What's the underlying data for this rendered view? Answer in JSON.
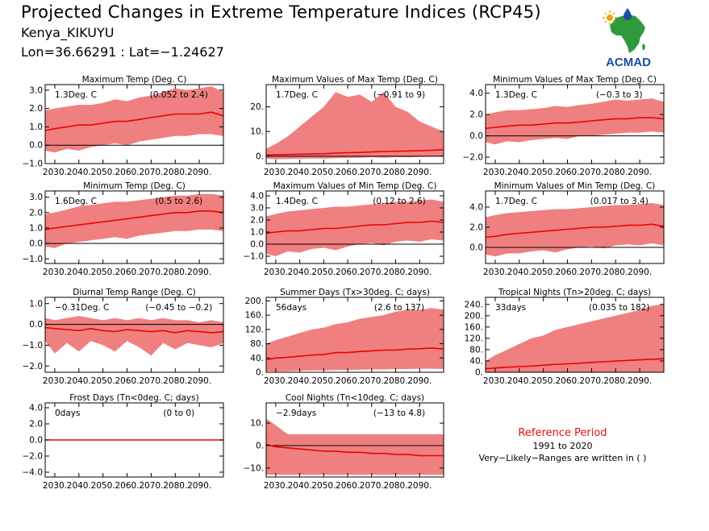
{
  "header": {
    "title": "Projected Changes in Extreme Temperature Indices (RCP45)",
    "location": "Kenya_KIKUYU",
    "coords": "Lon=36.66291 : Lat=−1.24627"
  },
  "logo": {
    "text": "ACMAD"
  },
  "reference": {
    "title": "Reference Period",
    "years": "1991 to 2020",
    "note": "Very−Likely−Ranges are written in ( )"
  },
  "colors": {
    "band": "#f08080",
    "line": "#ee0000",
    "zero": "#000000",
    "logo_blue": "#1b4f9c",
    "logo_green": "#2e9a3a"
  },
  "chart_data": [
    {
      "type": "area",
      "title": "Maximum Temp (Deg. C)",
      "value_label": "1.3Deg. C",
      "range_label": "(0.052 to 2.4)",
      "x": [
        2026,
        2030,
        2035,
        2040,
        2045,
        2050,
        2055,
        2060,
        2065,
        2070,
        2075,
        2080,
        2085,
        2090,
        2095,
        2100
      ],
      "median": [
        0.8,
        0.9,
        1.0,
        1.1,
        1.1,
        1.2,
        1.3,
        1.3,
        1.4,
        1.5,
        1.6,
        1.7,
        1.7,
        1.7,
        1.8,
        1.6
      ],
      "low": [
        -0.3,
        -0.4,
        -0.2,
        -0.3,
        -0.1,
        0.0,
        0.1,
        0.0,
        0.2,
        0.3,
        0.4,
        0.5,
        0.5,
        0.6,
        0.6,
        0.5
      ],
      "high": [
        1.9,
        2.0,
        2.1,
        2.2,
        2.2,
        2.3,
        2.5,
        2.4,
        2.6,
        2.7,
        2.9,
        3.1,
        3.0,
        3.1,
        3.2,
        2.9
      ],
      "ylim": [
        -1.0,
        3.3
      ],
      "yticks": [
        -1.0,
        0.0,
        1.0,
        2.0,
        3.0
      ],
      "ytick_labels": [
        "−1.0",
        "0.0",
        "1.0",
        "2.0",
        "3.0"
      ],
      "xlim": [
        2026,
        2100
      ],
      "xticks": [
        2030,
        2040,
        2050,
        2060,
        2070,
        2080,
        2090
      ],
      "xtick_labels": [
        "2030.",
        "2040.",
        "2050.",
        "2060.",
        "2070.",
        "2080.",
        "2090."
      ]
    },
    {
      "type": "area",
      "title": "Maximum Values of Max Temp (Deg. C)",
      "value_label": "1.7Deg. C",
      "range_label": "(−0.91 to 9)",
      "x": [
        2026,
        2030,
        2035,
        2040,
        2045,
        2050,
        2055,
        2060,
        2065,
        2070,
        2075,
        2080,
        2085,
        2090,
        2095,
        2100
      ],
      "median": [
        0.5,
        0.6,
        0.7,
        0.8,
        0.9,
        1.0,
        1.2,
        1.4,
        1.5,
        1.7,
        1.9,
        2.0,
        2.1,
        2.2,
        2.4,
        2.6
      ],
      "low": [
        -1.0,
        -1.2,
        -1.1,
        -1.0,
        -0.9,
        -1.0,
        -0.8,
        -0.7,
        -0.6,
        -0.5,
        -0.6,
        -0.4,
        -0.5,
        -0.3,
        -0.2,
        0.0
      ],
      "high": [
        3.0,
        5.0,
        8.0,
        12.0,
        16.0,
        20.0,
        26.0,
        24.0,
        25.0,
        22.0,
        26.0,
        20.0,
        18.0,
        14.0,
        12.0,
        10.0
      ],
      "ylim": [
        -3.0,
        29.0
      ],
      "yticks": [
        0,
        10,
        20
      ],
      "ytick_labels": [
        "0.",
        "10.",
        "20."
      ],
      "xlim": [
        2026,
        2100
      ],
      "xticks": [
        2030,
        2040,
        2050,
        2060,
        2070,
        2080,
        2090
      ],
      "xtick_labels": [
        "2030.",
        "2040.",
        "2050.",
        "2060.",
        "2070.",
        "2080.",
        "2090."
      ]
    },
    {
      "type": "area",
      "title": "Minimum Values of Max Temp (Deg. C)",
      "value_label": "1.3Deg. C",
      "range_label": "(−0.3 to 3)",
      "x": [
        2026,
        2030,
        2035,
        2040,
        2045,
        2050,
        2055,
        2060,
        2065,
        2070,
        2075,
        2080,
        2085,
        2090,
        2095,
        2100
      ],
      "median": [
        0.7,
        0.8,
        0.9,
        1.0,
        1.0,
        1.1,
        1.2,
        1.2,
        1.3,
        1.4,
        1.5,
        1.6,
        1.6,
        1.7,
        1.7,
        1.6
      ],
      "low": [
        -0.6,
        -0.8,
        -0.5,
        -0.6,
        -0.4,
        -0.3,
        -0.2,
        -0.3,
        0.0,
        0.0,
        0.1,
        0.2,
        0.3,
        0.3,
        0.4,
        0.3
      ],
      "high": [
        2.0,
        2.2,
        2.4,
        2.4,
        2.5,
        2.6,
        2.8,
        2.7,
        2.9,
        3.0,
        3.2,
        3.4,
        3.3,
        3.4,
        3.5,
        3.2
      ],
      "ylim": [
        -2.6,
        4.8
      ],
      "yticks": [
        -2.0,
        0.0,
        2.0,
        4.0
      ],
      "ytick_labels": [
        "−2.0",
        "0.0",
        "2.0",
        "4.0"
      ],
      "xlim": [
        2026,
        2100
      ],
      "xticks": [
        2030,
        2040,
        2050,
        2060,
        2070,
        2080,
        2090
      ],
      "xtick_labels": [
        "2030.",
        "2040.",
        "2050.",
        "2060.",
        "2070.",
        "2080.",
        "2090."
      ]
    },
    {
      "type": "area",
      "title": "Minimum Temp (Deg. C)",
      "value_label": "1.6Deg. C",
      "range_label": "(0.5 to 2.6)",
      "x": [
        2026,
        2030,
        2035,
        2040,
        2045,
        2050,
        2055,
        2060,
        2065,
        2070,
        2075,
        2080,
        2085,
        2090,
        2095,
        2100
      ],
      "median": [
        0.9,
        1.0,
        1.1,
        1.2,
        1.3,
        1.4,
        1.5,
        1.6,
        1.7,
        1.8,
        1.9,
        2.0,
        2.0,
        2.1,
        2.1,
        2.0
      ],
      "low": [
        -0.2,
        -0.3,
        0.0,
        0.1,
        0.2,
        0.3,
        0.4,
        0.3,
        0.5,
        0.6,
        0.7,
        0.8,
        0.8,
        0.9,
        0.9,
        0.8
      ],
      "high": [
        1.9,
        2.0,
        2.2,
        2.4,
        2.5,
        2.6,
        2.7,
        2.7,
        2.8,
        2.9,
        3.0,
        3.1,
        3.1,
        3.2,
        3.2,
        3.1
      ],
      "ylim": [
        -1.3,
        3.4
      ],
      "yticks": [
        -1.0,
        0.0,
        1.0,
        2.0,
        3.0
      ],
      "ytick_labels": [
        "−1.0",
        "0.0",
        "1.0",
        "2.0",
        "3.0"
      ],
      "xlim": [
        2026,
        2100
      ],
      "xticks": [
        2030,
        2040,
        2050,
        2060,
        2070,
        2080,
        2090
      ],
      "xtick_labels": [
        "2030.",
        "2040.",
        "2050.",
        "2060.",
        "2070.",
        "2080.",
        "2090."
      ]
    },
    {
      "type": "area",
      "title": "Maximum Values of Min Temp (Deg. C)",
      "value_label": "1.4Deg. C",
      "range_label": "(0.12 to 2.6)",
      "x": [
        2026,
        2030,
        2035,
        2040,
        2045,
        2050,
        2055,
        2060,
        2065,
        2070,
        2075,
        2080,
        2085,
        2090,
        2095,
        2100
      ],
      "median": [
        0.9,
        1.0,
        1.1,
        1.1,
        1.2,
        1.3,
        1.3,
        1.4,
        1.5,
        1.6,
        1.6,
        1.7,
        1.8,
        1.8,
        1.9,
        1.8
      ],
      "low": [
        -0.8,
        -1.0,
        -0.6,
        -0.7,
        -0.4,
        -0.3,
        -0.5,
        -0.2,
        0.0,
        0.1,
        -0.1,
        0.2,
        0.3,
        0.2,
        0.4,
        0.3
      ],
      "high": [
        2.3,
        2.5,
        2.7,
        2.8,
        2.9,
        3.0,
        3.1,
        3.1,
        3.2,
        3.3,
        3.4,
        3.5,
        3.5,
        3.6,
        3.7,
        3.5
      ],
      "ylim": [
        -1.6,
        4.4
      ],
      "yticks": [
        -1.0,
        0.0,
        1.0,
        2.0,
        3.0,
        4.0
      ],
      "ytick_labels": [
        "−1.0",
        "0.0",
        "1.0",
        "2.0",
        "3.0",
        "4.0"
      ],
      "xlim": [
        2026,
        2100
      ],
      "xticks": [
        2030,
        2040,
        2050,
        2060,
        2070,
        2080,
        2090
      ],
      "xtick_labels": [
        "2030.",
        "2040.",
        "2050.",
        "2060.",
        "2070.",
        "2080.",
        "2090."
      ]
    },
    {
      "type": "area",
      "title": "Minimum Values of Min Temp (Deg. C)",
      "value_label": "1.7Deg. C",
      "range_label": "(0.017 to 3.4)",
      "x": [
        2026,
        2030,
        2035,
        2040,
        2045,
        2050,
        2055,
        2060,
        2065,
        2070,
        2075,
        2080,
        2085,
        2090,
        2095,
        2100
      ],
      "median": [
        1.0,
        1.1,
        1.3,
        1.4,
        1.5,
        1.6,
        1.7,
        1.8,
        1.9,
        2.0,
        2.0,
        2.1,
        2.2,
        2.2,
        2.3,
        2.1
      ],
      "low": [
        -0.7,
        -0.9,
        -0.6,
        -0.6,
        -0.4,
        -0.3,
        -0.5,
        -0.2,
        0.0,
        0.1,
        -0.1,
        0.2,
        0.3,
        0.2,
        0.4,
        0.2
      ],
      "high": [
        3.0,
        3.2,
        3.4,
        3.5,
        3.6,
        3.7,
        3.8,
        3.8,
        3.9,
        4.0,
        4.1,
        4.2,
        4.2,
        4.3,
        4.4,
        4.2
      ],
      "ylim": [
        -1.6,
        5.6
      ],
      "yticks": [
        0.0,
        2.0,
        4.0
      ],
      "ytick_labels": [
        "0.0",
        "2.0",
        "4.0"
      ],
      "xlim": [
        2026,
        2100
      ],
      "xticks": [
        2030,
        2040,
        2050,
        2060,
        2070,
        2080,
        2090
      ],
      "xtick_labels": [
        "2030.",
        "2040.",
        "2050.",
        "2060.",
        "2070.",
        "2080.",
        "2090."
      ]
    },
    {
      "type": "area",
      "title": "Diurnal Temp Range (Deg. C)",
      "value_label": "−0.31Deg. C",
      "range_label": "(−0.45 to −0.2)",
      "x": [
        2026,
        2030,
        2035,
        2040,
        2045,
        2050,
        2055,
        2060,
        2065,
        2070,
        2075,
        2080,
        2085,
        2090,
        2095,
        2100
      ],
      "median": [
        -0.15,
        -0.2,
        -0.25,
        -0.3,
        -0.2,
        -0.3,
        -0.35,
        -0.25,
        -0.3,
        -0.35,
        -0.3,
        -0.4,
        -0.3,
        -0.35,
        -0.4,
        -0.35
      ],
      "low": [
        -0.8,
        -1.4,
        -0.9,
        -1.3,
        -0.8,
        -1.0,
        -1.3,
        -0.8,
        -1.1,
        -1.5,
        -0.9,
        -1.2,
        -0.9,
        -1.0,
        -1.1,
        -0.9
      ],
      "high": [
        0.3,
        0.2,
        0.3,
        0.4,
        0.3,
        0.2,
        0.3,
        0.2,
        0.3,
        0.2,
        0.3,
        0.2,
        0.2,
        0.1,
        0.2,
        0.1
      ],
      "ylim": [
        -2.3,
        1.3
      ],
      "yticks": [
        -2.0,
        -1.0,
        0.0,
        1.0
      ],
      "ytick_labels": [
        "−2.0",
        "−1.0",
        "0.0",
        "1.0"
      ],
      "xlim": [
        2026,
        2100
      ],
      "xticks": [
        2030,
        2040,
        2050,
        2060,
        2070,
        2080,
        2090
      ],
      "xtick_labels": [
        "2030.",
        "2040.",
        "2050.",
        "2060.",
        "2070.",
        "2080.",
        "2090."
      ]
    },
    {
      "type": "area",
      "title": "Summer Days (Tx>30deg. C; days)",
      "value_label": "56days",
      "range_label": "(2.6 to 137)",
      "x": [
        2026,
        2030,
        2035,
        2040,
        2045,
        2050,
        2055,
        2060,
        2065,
        2070,
        2075,
        2080,
        2085,
        2090,
        2095,
        2100
      ],
      "median": [
        35,
        40,
        42,
        45,
        48,
        50,
        55,
        55,
        58,
        60,
        62,
        62,
        65,
        66,
        68,
        65
      ],
      "low": [
        3,
        2,
        3,
        4,
        5,
        5,
        6,
        6,
        7,
        8,
        8,
        9,
        9,
        10,
        10,
        9
      ],
      "high": [
        80,
        90,
        100,
        110,
        120,
        125,
        135,
        140,
        150,
        155,
        160,
        170,
        175,
        175,
        180,
        175
      ],
      "ylim": [
        0,
        210
      ],
      "yticks": [
        0,
        40,
        80,
        120,
        160,
        200
      ],
      "ytick_labels": [
        "0.",
        "40.",
        "80.",
        "120.",
        "160.",
        "200."
      ],
      "xlim": [
        2026,
        2100
      ],
      "xticks": [
        2030,
        2040,
        2050,
        2060,
        2070,
        2080,
        2090
      ],
      "xtick_labels": [
        "2030.",
        "2040.",
        "2050.",
        "2060.",
        "2070.",
        "2080.",
        "2090."
      ]
    },
    {
      "type": "area",
      "title": "Tropical Nights (Tn>20deg. C; days)",
      "value_label": "33days",
      "range_label": "(0.035 to 182)",
      "x": [
        2026,
        2030,
        2035,
        2040,
        2045,
        2050,
        2055,
        2060,
        2065,
        2070,
        2075,
        2080,
        2085,
        2090,
        2095,
        2100
      ],
      "median": [
        12,
        15,
        18,
        20,
        22,
        25,
        28,
        30,
        32,
        35,
        37,
        40,
        42,
        44,
        46,
        48
      ],
      "low": [
        0,
        0,
        0,
        0,
        0,
        0,
        0,
        0,
        0,
        0,
        0,
        0,
        0,
        0,
        0,
        0
      ],
      "high": [
        40,
        60,
        80,
        100,
        120,
        130,
        150,
        160,
        170,
        180,
        190,
        200,
        210,
        220,
        235,
        240
      ],
      "ylim": [
        0,
        265
      ],
      "yticks": [
        0,
        40,
        80,
        120,
        160,
        200,
        240
      ],
      "ytick_labels": [
        "0.",
        "40.",
        "80.",
        "120.",
        "160.",
        "200.",
        "240."
      ],
      "xlim": [
        2026,
        2100
      ],
      "xticks": [
        2030,
        2040,
        2050,
        2060,
        2070,
        2080,
        2090
      ],
      "xtick_labels": [
        "2030.",
        "2040.",
        "2050.",
        "2060.",
        "2070.",
        "2080.",
        "2090."
      ]
    },
    {
      "type": "area",
      "title": "Frost Days (Tn<0deg. C; days)",
      "value_label": "0days",
      "range_label": "(0 to 0)",
      "x": [
        2026,
        2100
      ],
      "median": [
        0,
        0
      ],
      "low": [
        0,
        0
      ],
      "high": [
        0,
        0
      ],
      "ylim": [
        -4.6,
        4.6
      ],
      "yticks": [
        -4.0,
        -2.0,
        0.0,
        2.0,
        4.0
      ],
      "ytick_labels": [
        "−4.0",
        "−2.0",
        "0.0",
        "2.0",
        "4.0"
      ],
      "xlim": [
        2026,
        2100
      ],
      "xticks": [
        2030,
        2040,
        2050,
        2060,
        2070,
        2080,
        2090
      ],
      "xtick_labels": [
        "2030.",
        "2040.",
        "2050.",
        "2060.",
        "2070.",
        "2080.",
        "2090."
      ]
    },
    {
      "type": "area",
      "title": "Cool Nights (Tn<10deg. C; days)",
      "value_label": "−2.9days",
      "range_label": "(−13 to 4.8)",
      "x": [
        2026,
        2030,
        2035,
        2040,
        2045,
        2050,
        2055,
        2060,
        2065,
        2070,
        2075,
        2080,
        2085,
        2090,
        2095,
        2100
      ],
      "median": [
        0.5,
        -0.5,
        -1.0,
        -1.5,
        -2.0,
        -2.5,
        -2.5,
        -3.0,
        -3.0,
        -3.5,
        -3.5,
        -4.0,
        -4.0,
        -4.5,
        -4.5,
        -4.5
      ],
      "low": [
        -13,
        -13,
        -13,
        -13,
        -13,
        -13,
        -13,
        -13,
        -13,
        -13,
        -13,
        -13,
        -13,
        -13,
        -13,
        -13
      ],
      "high": [
        12,
        9,
        5,
        5,
        5,
        5,
        5,
        5,
        5,
        5,
        5,
        5,
        5,
        5,
        5,
        5
      ],
      "ylim": [
        -14,
        19
      ],
      "yticks": [
        -10,
        0,
        10
      ],
      "ytick_labels": [
        "−10.",
        "0.",
        "10."
      ],
      "xlim": [
        2026,
        2100
      ],
      "xticks": [
        2030,
        2040,
        2050,
        2060,
        2070,
        2080,
        2090
      ],
      "xtick_labels": [
        "2030.",
        "2040.",
        "2050.",
        "2060.",
        "2070.",
        "2080.",
        "2090."
      ]
    }
  ]
}
